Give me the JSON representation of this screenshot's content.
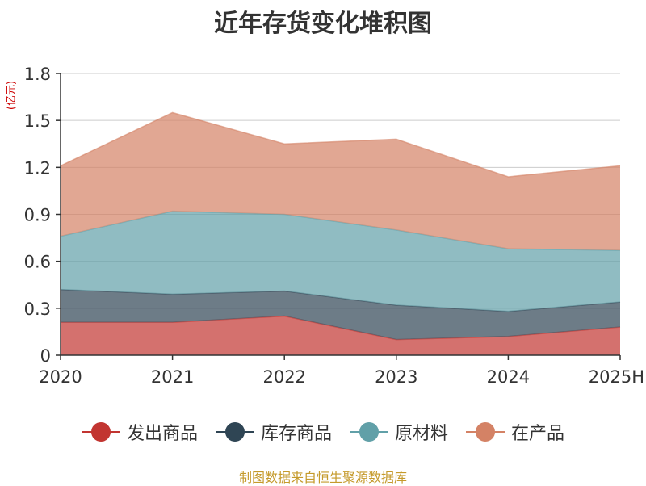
{
  "chart_data": {
    "type": "area",
    "stacked": true,
    "title": "近年存货变化堆积图",
    "unit_label": "(亿元)",
    "x": [
      "2020",
      "2021",
      "2022",
      "2023",
      "2024",
      "2025H"
    ],
    "ylim": [
      0,
      1.8
    ],
    "yticks": [
      0,
      0.3,
      0.6,
      0.9,
      1.2,
      1.5,
      1.8
    ],
    "ytick_labels": [
      "0",
      "0.3",
      "0.6",
      "0.9",
      "1.2",
      "1.5",
      "1.8"
    ],
    "grid": true,
    "legend_position": "bottom",
    "series": [
      {
        "name": "发出商品",
        "color": "#c23531",
        "values": [
          0.21,
          0.21,
          0.25,
          0.1,
          0.12,
          0.18
        ]
      },
      {
        "name": "库存商品",
        "color": "#2f4554",
        "values": [
          0.21,
          0.18,
          0.16,
          0.22,
          0.16,
          0.16
        ]
      },
      {
        "name": "原材料",
        "color": "#61a0a8",
        "values": [
          0.34,
          0.53,
          0.49,
          0.48,
          0.4,
          0.33
        ]
      },
      {
        "name": "在产品",
        "color": "#d48265",
        "values": [
          0.45,
          0.63,
          0.45,
          0.58,
          0.46,
          0.54
        ]
      }
    ],
    "source_note": "制图数据来自恒生聚源数据库"
  }
}
